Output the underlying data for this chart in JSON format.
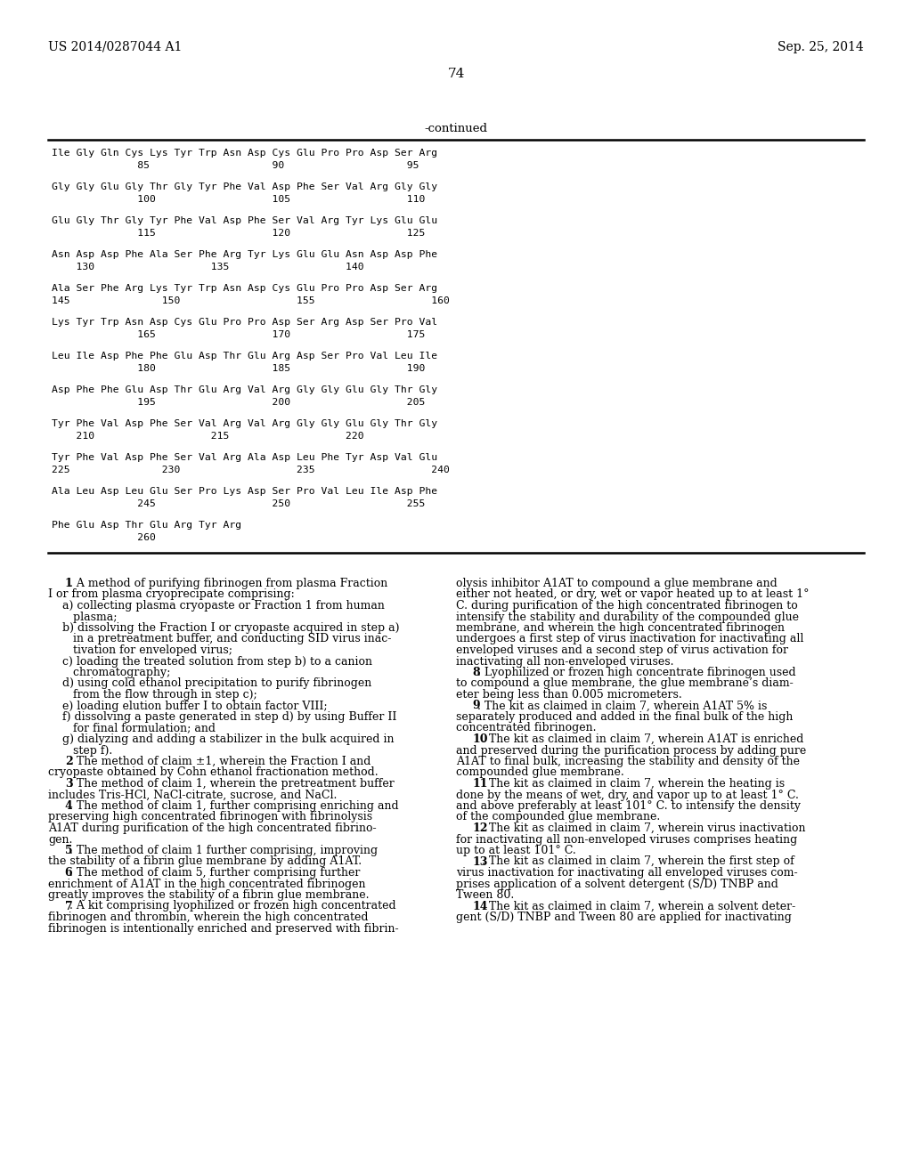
{
  "header_left": "US 2014/0287044 A1",
  "header_right": "Sep. 25, 2014",
  "page_number": "74",
  "continued_label": "-continued",
  "background_color": "#ffffff",
  "text_color": "#000000",
  "sequence_blocks": [
    {
      "seq": "Ile Gly Gln Cys Lys Tyr Trp Asn Asp Cys Glu Pro Pro Asp Ser Arg",
      "nums": "              85                    90                    95"
    },
    {
      "seq": "Gly Gly Glu Gly Thr Gly Tyr Phe Val Asp Phe Ser Val Arg Gly Gly",
      "nums": "              100                   105                   110"
    },
    {
      "seq": "Glu Gly Thr Gly Tyr Phe Val Asp Phe Ser Val Arg Tyr Lys Glu Glu",
      "nums": "              115                   120                   125"
    },
    {
      "seq": "Asn Asp Asp Phe Ala Ser Phe Arg Tyr Lys Glu Glu Asn Asp Asp Phe",
      "nums": "    130                   135                   140"
    },
    {
      "seq": "Ala Ser Phe Arg Lys Tyr Trp Asn Asp Cys Glu Pro Pro Asp Ser Arg",
      "nums": "145               150                   155                   160"
    },
    {
      "seq": "Lys Tyr Trp Asn Asp Cys Glu Pro Pro Asp Ser Arg Asp Ser Pro Val",
      "nums": "              165                   170                   175"
    },
    {
      "seq": "Leu Ile Asp Phe Phe Glu Asp Thr Glu Arg Asp Ser Pro Val Leu Ile",
      "nums": "              180                   185                   190"
    },
    {
      "seq": "Asp Phe Phe Glu Asp Thr Glu Arg Val Arg Gly Gly Glu Gly Thr Gly",
      "nums": "              195                   200                   205"
    },
    {
      "seq": "Tyr Phe Val Asp Phe Ser Val Arg Val Arg Gly Gly Glu Gly Thr Gly",
      "nums": "    210                   215                   220"
    },
    {
      "seq": "Tyr Phe Val Asp Phe Ser Val Arg Ala Asp Leu Phe Tyr Asp Val Glu",
      "nums": "225               230                   235                   240"
    },
    {
      "seq": "Ala Leu Asp Leu Glu Ser Pro Lys Asp Ser Pro Val Leu Ile Asp Phe",
      "nums": "              245                   250                   255"
    },
    {
      "seq": "Phe Glu Asp Thr Glu Arg Tyr Arg",
      "nums": "              260"
    }
  ],
  "left_col": [
    "    ±1. A method of purifying fibrinogen from plasma Fraction",
    "I or from plasma cryoprecipate comprising:",
    "    a) collecting plasma cryopaste or Fraction 1 from human",
    "       plasma;",
    "    b) dissolving the Fraction I or cryopaste acquired in step a)",
    "       in a pretreatment buffer, and conducting SID virus inac-",
    "       tivation for enveloped virus;",
    "    c) loading the treated solution from step b) to a canion",
    "       chromatography;",
    "    d) using cold ethanol precipitation to purify fibrinogen",
    "       from the flow through in step c);",
    "    e) loading elution buffer I to obtain factor VIII;",
    "    f) dissolving a paste generated in step d) by using Buffer II",
    "       for final formulation; and",
    "    g) dialyzing and adding a stabilizer in the bulk acquired in",
    "       step f).",
    "    ±2. The method of claim ±1, wherein the Fraction I and",
    "cryopaste obtained by Cohn ethanol fractionation method.",
    "    ±3. The method of claim 1, wherein the pretreatment buffer",
    "includes Tris-HCl, NaCl-citrate, sucrose, and NaCl.",
    "    ±4. The method of claim 1, further comprising enriching and",
    "preserving high concentrated fibrinogen with fibrinolysis",
    "A1AT during purification of the high concentrated fibrino-",
    "gen.",
    "    ±5. The method of claim 1 further comprising, improving",
    "the stability of a fibrin glue membrane by adding A1AT.",
    "    ±6. The method of claim 5, further comprising further",
    "enrichment of A1AT in the high concentrated fibrinogen",
    "greatly improves the stability of a fibrin glue membrane.",
    "    ±7. A kit comprising lyophilized or frozen high concentrated",
    "fibrinogen and thrombin, wherein the high concentrated",
    "fibrinogen is intentionally enriched and preserved with fibrin-"
  ],
  "right_col": [
    "olysis inhibitor A1AT to compound a glue membrane and",
    "either not heated, or dry, wet or vapor heated up to at least 1°",
    "C. during purification of the high concentrated fibrinogen to",
    "intensify the stability and durability of the compounded glue",
    "membrane, and wherein the high concentrated fibrinogen",
    "undergoes a first step of virus inactivation for inactivating all",
    "enveloped viruses and a second step of virus activation for",
    "inactivating all non-enveloped viruses.",
    "    ±8. Lyophilized or frozen high concentrate fibrinogen used",
    "to compound a glue membrane, the glue membrane’s diam-",
    "eter being less than 0.005 micrometers.",
    "    ±9. The kit as claimed in claim 7, wherein A1AT 5% is",
    "separately produced and added in the final bulk of the high",
    "concentrated fibrinogen.",
    "    ±10. The kit as claimed in claim 7, wherein A1AT is enriched",
    "and preserved during the purification process by adding pure",
    "A1AT to final bulk, increasing the stability and density of the",
    "compounded glue membrane.",
    "    ±11. The kit as claimed in claim 7, wherein the heating is",
    "done by the means of wet, dry, and vapor up to at least 1° C.",
    "and above preferably at least 101° C. to intensify the density",
    "of the compounded glue membrane.",
    "    ±12. The kit as claimed in claim 7, wherein virus inactivation",
    "for inactivating all non-enveloped viruses comprises heating",
    "up to at least 101° C.",
    "    ±13. The kit as claimed in claim 7, wherein the first step of",
    "virus inactivation for inactivating all enveloped viruses com-",
    "prises application of a solvent detergent (S/D) TNBP and",
    "Tween 80.",
    "    ±14. The kit as claimed in claim 7, wherein a solvent deter-",
    "gent (S/D) TNBP and Tween 80 are applied for inactivating"
  ]
}
